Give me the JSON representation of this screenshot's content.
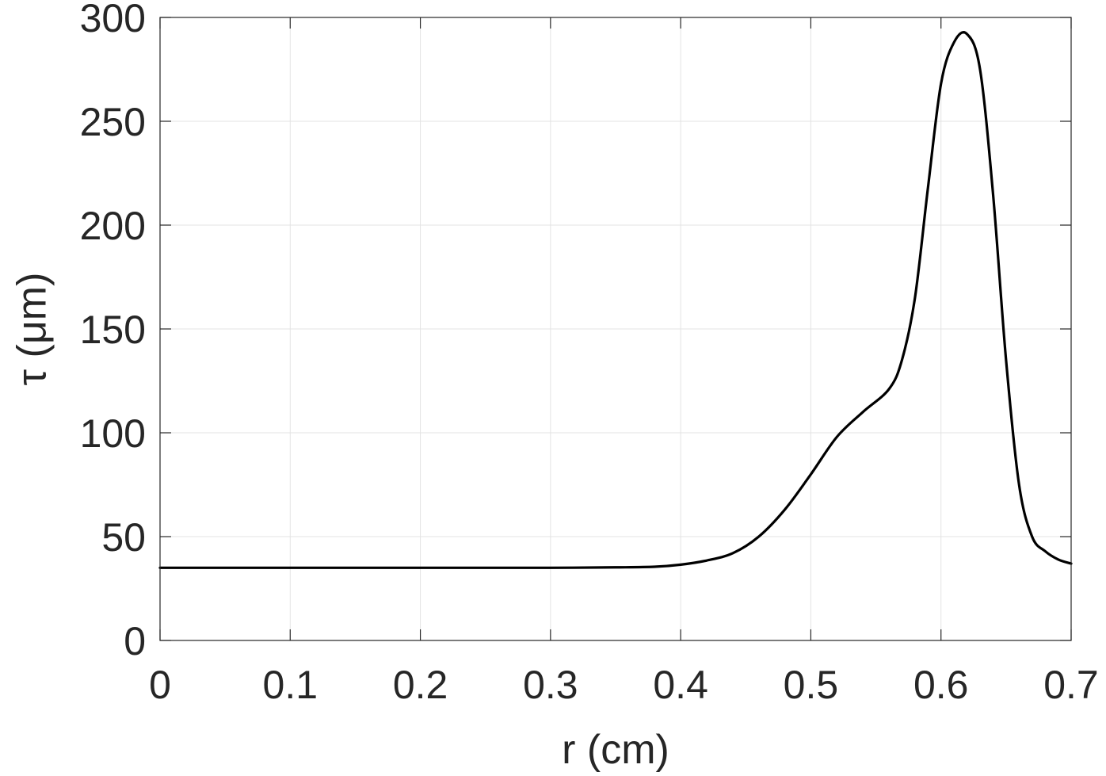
{
  "chart_data": {
    "type": "line",
    "title": "",
    "xlabel": "r (cm)",
    "ylabel": "τ (μm)",
    "xlim": [
      0,
      0.7
    ],
    "ylim": [
      0,
      300
    ],
    "xticks": [
      0,
      0.1,
      0.2,
      0.3,
      0.4,
      0.5,
      0.6,
      0.7
    ],
    "xtick_labels": [
      "0",
      "0.1",
      "0.2",
      "0.3",
      "0.4",
      "0.5",
      "0.6",
      "0.7"
    ],
    "yticks": [
      0,
      50,
      100,
      150,
      200,
      250,
      300
    ],
    "ytick_labels": [
      "0",
      "50",
      "100",
      "150",
      "200",
      "250",
      "300"
    ],
    "grid": true,
    "legend": false,
    "series": [
      {
        "color": "#000000",
        "x": [
          0,
          0.05,
          0.1,
          0.15,
          0.2,
          0.25,
          0.3,
          0.35,
          0.38,
          0.4,
          0.42,
          0.44,
          0.46,
          0.48,
          0.5,
          0.52,
          0.54,
          0.56,
          0.57,
          0.58,
          0.59,
          0.6,
          0.61,
          0.62,
          0.63,
          0.64,
          0.65,
          0.66,
          0.67,
          0.68,
          0.69,
          0.7
        ],
        "y": [
          35,
          35,
          35,
          35,
          35,
          35,
          35,
          35.2,
          35.5,
          36.5,
          38.5,
          42,
          50,
          63,
          80,
          98,
          110,
          121,
          135,
          165,
          218,
          268,
          288,
          292,
          275,
          215,
          135,
          75,
          50,
          43,
          39,
          37
        ]
      }
    ]
  }
}
